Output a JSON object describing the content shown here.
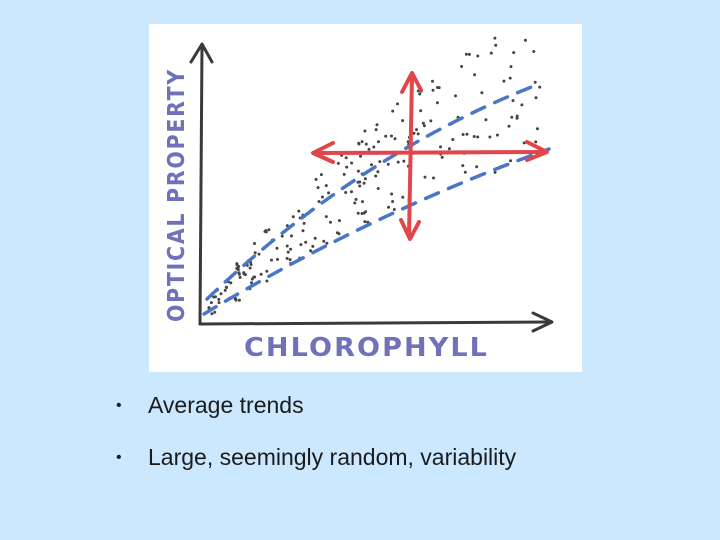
{
  "figure": {
    "x_axis_title": "CHLOROPHYLL",
    "y_axis_title": "OPTICAL PROPERTY",
    "colors": {
      "axis": "#3a3a3a",
      "axis_title": "#6f72b8",
      "trend": "#4a76c8",
      "variability_arrows": "#e0464a",
      "dots": "#444444"
    }
  },
  "bullets": [
    {
      "bullet": "•",
      "text": "Average trends"
    },
    {
      "bullet": "•",
      "text": "Large, seemingly random, variability"
    }
  ]
}
